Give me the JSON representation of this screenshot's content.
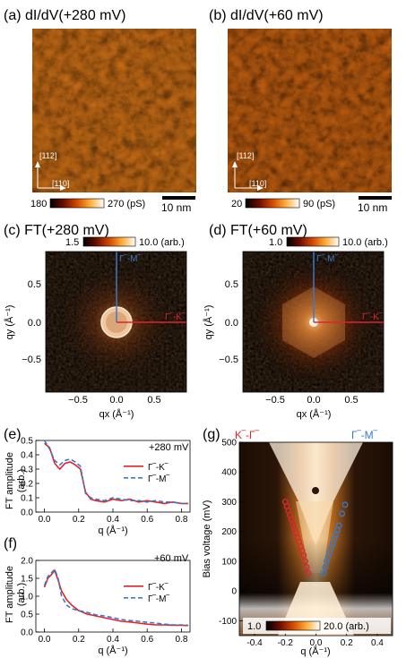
{
  "panels": {
    "a": {
      "title": "(a) dI/dV(+280 mV)",
      "cbar_min": "180",
      "cbar_max": "270 (pS)",
      "scalebar": "10 nm",
      "dir_y": "[112]",
      "dir_x": "[110]"
    },
    "b": {
      "title": "(b) dI/dV(+60 mV)",
      "cbar_min": "20",
      "cbar_max": "90 (pS)",
      "scalebar": "10 nm",
      "dir_y": "[112]",
      "dir_x": "[110]"
    },
    "c": {
      "title": "(c) FT(+280 mV)",
      "cbar_min": "1.5",
      "cbar_max": "10.0 (arb.)",
      "label_gm": "Γ‾-M‾",
      "label_gk": "Γ‾-K‾",
      "xlabel": "qx (Å⁻¹)",
      "ylabel": "qy (Å⁻¹)"
    },
    "d": {
      "title": "(d) FT(+60 mV)",
      "cbar_min": "1.0",
      "cbar_max": "10.0 (arb.)",
      "label_gm": "Γ‾-M‾",
      "label_gk": "Γ‾-K‾",
      "xlabel": "qx (Å⁻¹)"
    },
    "e": {
      "title": "(e)",
      "note": "+280 mV",
      "ylabel1": "FT amplitude",
      "ylabel2": "(arb.)",
      "xlabel": "q (Å⁻¹)"
    },
    "f": {
      "title": "(f)",
      "note": "+60 mV",
      "ylabel1": "FT amplitude",
      "ylabel2": "(arb.)",
      "xlabel": "q (Å⁻¹)"
    },
    "g": {
      "title": "(g)",
      "label_kg": "K‾-Γ‾",
      "label_gm": "Γ‾-M‾",
      "ylabel": "Bias voltage (mV)",
      "xlabel": "q (Å⁻¹)",
      "cbar_min": "1.0",
      "cbar_max": "20.0 (arb.)"
    }
  },
  "colors": {
    "gk_red": "#e0242b",
    "gm_blue": "#3a78c8"
  },
  "chart_data": [
    {
      "type": "line",
      "panel": "e",
      "xlim": [
        -0.05,
        0.85
      ],
      "ylim": [
        0,
        0.5
      ],
      "xticks": [
        "0.0",
        "0.2",
        "0.4",
        "0.6",
        "0.8"
      ],
      "yticks": [
        "0.0",
        "0.1",
        "0.2",
        "0.3",
        "0.4",
        "0.5"
      ],
      "legend": "top-right",
      "series": [
        {
          "name": "Γ‾-K‾",
          "style": "solid",
          "color": "#e0242b",
          "x": [
            0.0,
            0.03,
            0.06,
            0.09,
            0.12,
            0.15,
            0.18,
            0.21,
            0.24,
            0.27,
            0.3,
            0.35,
            0.4,
            0.45,
            0.5,
            0.55,
            0.6,
            0.65,
            0.7,
            0.75,
            0.8,
            0.84
          ],
          "values": [
            0.48,
            0.45,
            0.34,
            0.3,
            0.34,
            0.35,
            0.33,
            0.3,
            0.14,
            0.09,
            0.08,
            0.07,
            0.09,
            0.08,
            0.09,
            0.07,
            0.08,
            0.07,
            0.06,
            0.07,
            0.06,
            0.06
          ]
        },
        {
          "name": "Γ‾-M‾",
          "style": "dashed",
          "color": "#3a78c8",
          "x": [
            0.0,
            0.03,
            0.06,
            0.09,
            0.12,
            0.15,
            0.18,
            0.21,
            0.24,
            0.27,
            0.3,
            0.35,
            0.4,
            0.45,
            0.5,
            0.55,
            0.6,
            0.65,
            0.7,
            0.75,
            0.8,
            0.84
          ],
          "values": [
            0.5,
            0.44,
            0.36,
            0.33,
            0.36,
            0.37,
            0.35,
            0.32,
            0.13,
            0.1,
            0.09,
            0.08,
            0.1,
            0.09,
            0.08,
            0.08,
            0.07,
            0.08,
            0.07,
            0.07,
            0.06,
            0.06
          ]
        }
      ]
    },
    {
      "type": "line",
      "panel": "f",
      "xlim": [
        -0.05,
        0.85
      ],
      "ylim": [
        0,
        2.0
      ],
      "xticks": [
        "0.0",
        "0.2",
        "0.4",
        "0.6",
        "0.8"
      ],
      "yticks": [
        "0.0",
        "0.5",
        "1.0",
        "1.5",
        "2.0"
      ],
      "legend": "top-right",
      "series": [
        {
          "name": "Γ‾-K‾",
          "style": "solid",
          "color": "#e0242b",
          "x": [
            0.0,
            0.02,
            0.04,
            0.06,
            0.08,
            0.1,
            0.13,
            0.16,
            0.2,
            0.25,
            0.3,
            0.35,
            0.4,
            0.45,
            0.5,
            0.55,
            0.6,
            0.65,
            0.7,
            0.75,
            0.8,
            0.84
          ],
          "values": [
            1.25,
            1.5,
            1.6,
            1.72,
            1.45,
            1.15,
            0.9,
            0.75,
            0.6,
            0.5,
            0.45,
            0.4,
            0.35,
            0.3,
            0.28,
            0.25,
            0.22,
            0.2,
            0.2,
            0.19,
            0.19,
            0.18
          ]
        },
        {
          "name": "Γ‾-M‾",
          "style": "dashed",
          "color": "#3a78c8",
          "x": [
            0.0,
            0.02,
            0.04,
            0.06,
            0.08,
            0.1,
            0.13,
            0.16,
            0.2,
            0.25,
            0.3,
            0.35,
            0.4,
            0.45,
            0.5,
            0.55,
            0.6,
            0.65,
            0.7,
            0.75,
            0.8,
            0.84
          ],
          "values": [
            1.3,
            1.55,
            1.65,
            1.75,
            1.5,
            1.0,
            0.75,
            0.65,
            0.6,
            0.55,
            0.48,
            0.45,
            0.4,
            0.35,
            0.32,
            0.3,
            0.27,
            0.25,
            0.22,
            0.2,
            0.2,
            0.19
          ]
        }
      ]
    },
    {
      "type": "heatmap",
      "panel": "g",
      "xlim": [
        -0.5,
        0.5
      ],
      "ylim": [
        -150,
        500
      ],
      "xticks": [
        "-0.4",
        "-0.2",
        "0.0",
        "0.2",
        "0.4"
      ],
      "yticks": [
        "-100",
        "0",
        "100",
        "200",
        "300",
        "400",
        "500"
      ],
      "overlays": [
        {
          "name": "K‾-Γ‾",
          "color": "#e0242b",
          "x": [
            -0.2,
            -0.19,
            -0.18,
            -0.17,
            -0.16,
            -0.15,
            -0.14,
            -0.13,
            -0.12,
            -0.11,
            -0.1,
            -0.09,
            -0.08,
            -0.07,
            -0.06,
            -0.05
          ],
          "values": [
            300,
            285,
            270,
            255,
            240,
            225,
            210,
            195,
            180,
            165,
            150,
            135,
            120,
            100,
            80,
            60
          ]
        },
        {
          "name": "Γ‾-M‾",
          "color": "#3a78c8",
          "x": [
            0.05,
            0.06,
            0.07,
            0.08,
            0.09,
            0.1,
            0.11,
            0.12,
            0.13,
            0.14,
            0.15,
            0.17,
            0.19
          ],
          "values": [
            60,
            80,
            100,
            115,
            130,
            145,
            160,
            175,
            190,
            205,
            220,
            260,
            290
          ]
        }
      ]
    }
  ]
}
